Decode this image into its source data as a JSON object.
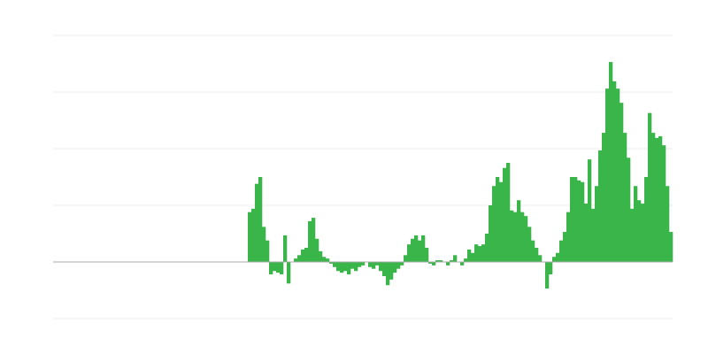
{
  "chart_data": {
    "type": "bar",
    "color": "#3ab54a",
    "grid": true,
    "ylim": [
      -1,
      4
    ],
    "yticks": [
      -1,
      0,
      1,
      2,
      3,
      4
    ],
    "categories": [
      null,
      null,
      null,
      null,
      null,
      null,
      null,
      null,
      null,
      null,
      null,
      null,
      null,
      null,
      null,
      null,
      null,
      null,
      null,
      null,
      null,
      null,
      null,
      null,
      null,
      null,
      null,
      null,
      null,
      null,
      null,
      null,
      null,
      null,
      null,
      null,
      null,
      null,
      null,
      null,
      null,
      null,
      null,
      null,
      null,
      null,
      null,
      null,
      null,
      null,
      null,
      null,
      null,
      null,
      null,
      null,
      null,
      null,
      null,
      null,
      null,
      null,
      null,
      null,
      null,
      null,
      null,
      null,
      null,
      null,
      null,
      null,
      null,
      null,
      null,
      null,
      null,
      null,
      null,
      null,
      null,
      null,
      null,
      null,
      null,
      null,
      null,
      null,
      null,
      null,
      null,
      null,
      null,
      null,
      null,
      null,
      null,
      null,
      null,
      null,
      null,
      null,
      null,
      null,
      null,
      null,
      null,
      null,
      null,
      null,
      null,
      null,
      null,
      null,
      null,
      null,
      null,
      null,
      null,
      null,
      null,
      null,
      null,
      null,
      null,
      null,
      null,
      null,
      null,
      null,
      null,
      null,
      null,
      null,
      null,
      null,
      null,
      null,
      null,
      null,
      null,
      null,
      null,
      null,
      null,
      null,
      null,
      null,
      null,
      null,
      null,
      null,
      null,
      null,
      null,
      null,
      null,
      null,
      null,
      null,
      null,
      null,
      null,
      null,
      null,
      null,
      null,
      null,
      null,
      null,
      null,
      null,
      null,
      null,
      null
    ],
    "values": [
      0,
      0,
      0,
      0,
      0,
      0,
      0,
      0,
      0,
      0,
      0,
      0,
      0,
      0,
      0,
      0,
      0,
      0,
      0,
      0,
      0,
      0,
      0,
      0,
      0,
      0,
      0,
      0,
      0,
      0,
      0,
      0,
      0,
      0,
      0,
      0,
      0,
      0,
      0,
      0,
      0,
      0,
      0,
      0,
      0,
      0,
      0,
      0,
      0,
      0,
      0,
      0,
      0,
      0,
      0,
      0.88,
      0.94,
      1.38,
      1.5,
      0.62,
      0.38,
      -0.22,
      -0.16,
      -0.19,
      -0.22,
      0.47,
      -0.38,
      0,
      0.06,
      0.12,
      0.22,
      0.25,
      0.72,
      0.78,
      0.41,
      0.19,
      0.09,
      0.06,
      -0.03,
      -0.09,
      -0.16,
      -0.19,
      -0.16,
      -0.22,
      -0.12,
      -0.16,
      -0.09,
      -0.06,
      0,
      -0.09,
      -0.12,
      -0.06,
      -0.16,
      -0.25,
      -0.41,
      -0.31,
      -0.19,
      -0.12,
      -0.06,
      0.12,
      0.31,
      0.41,
      0.47,
      0.38,
      0.47,
      0.25,
      -0.03,
      -0.06,
      0.03,
      0.03,
      0,
      -0.06,
      0.03,
      0.12,
      0,
      -0.06,
      0.06,
      0.22,
      0.16,
      0.31,
      0.28,
      0.31,
      0.5,
      1.0,
      1.34,
      1.5,
      1.41,
      1.66,
      1.75,
      0.91,
      0.88,
      1.09,
      0.88,
      0.81,
      0.62,
      0.38,
      0.25,
      0.12,
      0,
      -0.47,
      -0.22,
      0.09,
      0.16,
      0.38,
      0.53,
      0.88,
      1.5,
      1.5,
      1.44,
      1.41,
      1.03,
      1.81,
      0.94,
      1.34,
      1.97,
      2.28,
      3.06,
      3.53,
      3.19,
      3.06,
      2.81,
      2.28,
      1.84,
      0.94,
      1.34,
      1.09,
      1.03,
      1.5,
      2.63,
      2.28,
      2.19,
      2.22,
      2.06,
      1.34,
      0.53
    ]
  }
}
